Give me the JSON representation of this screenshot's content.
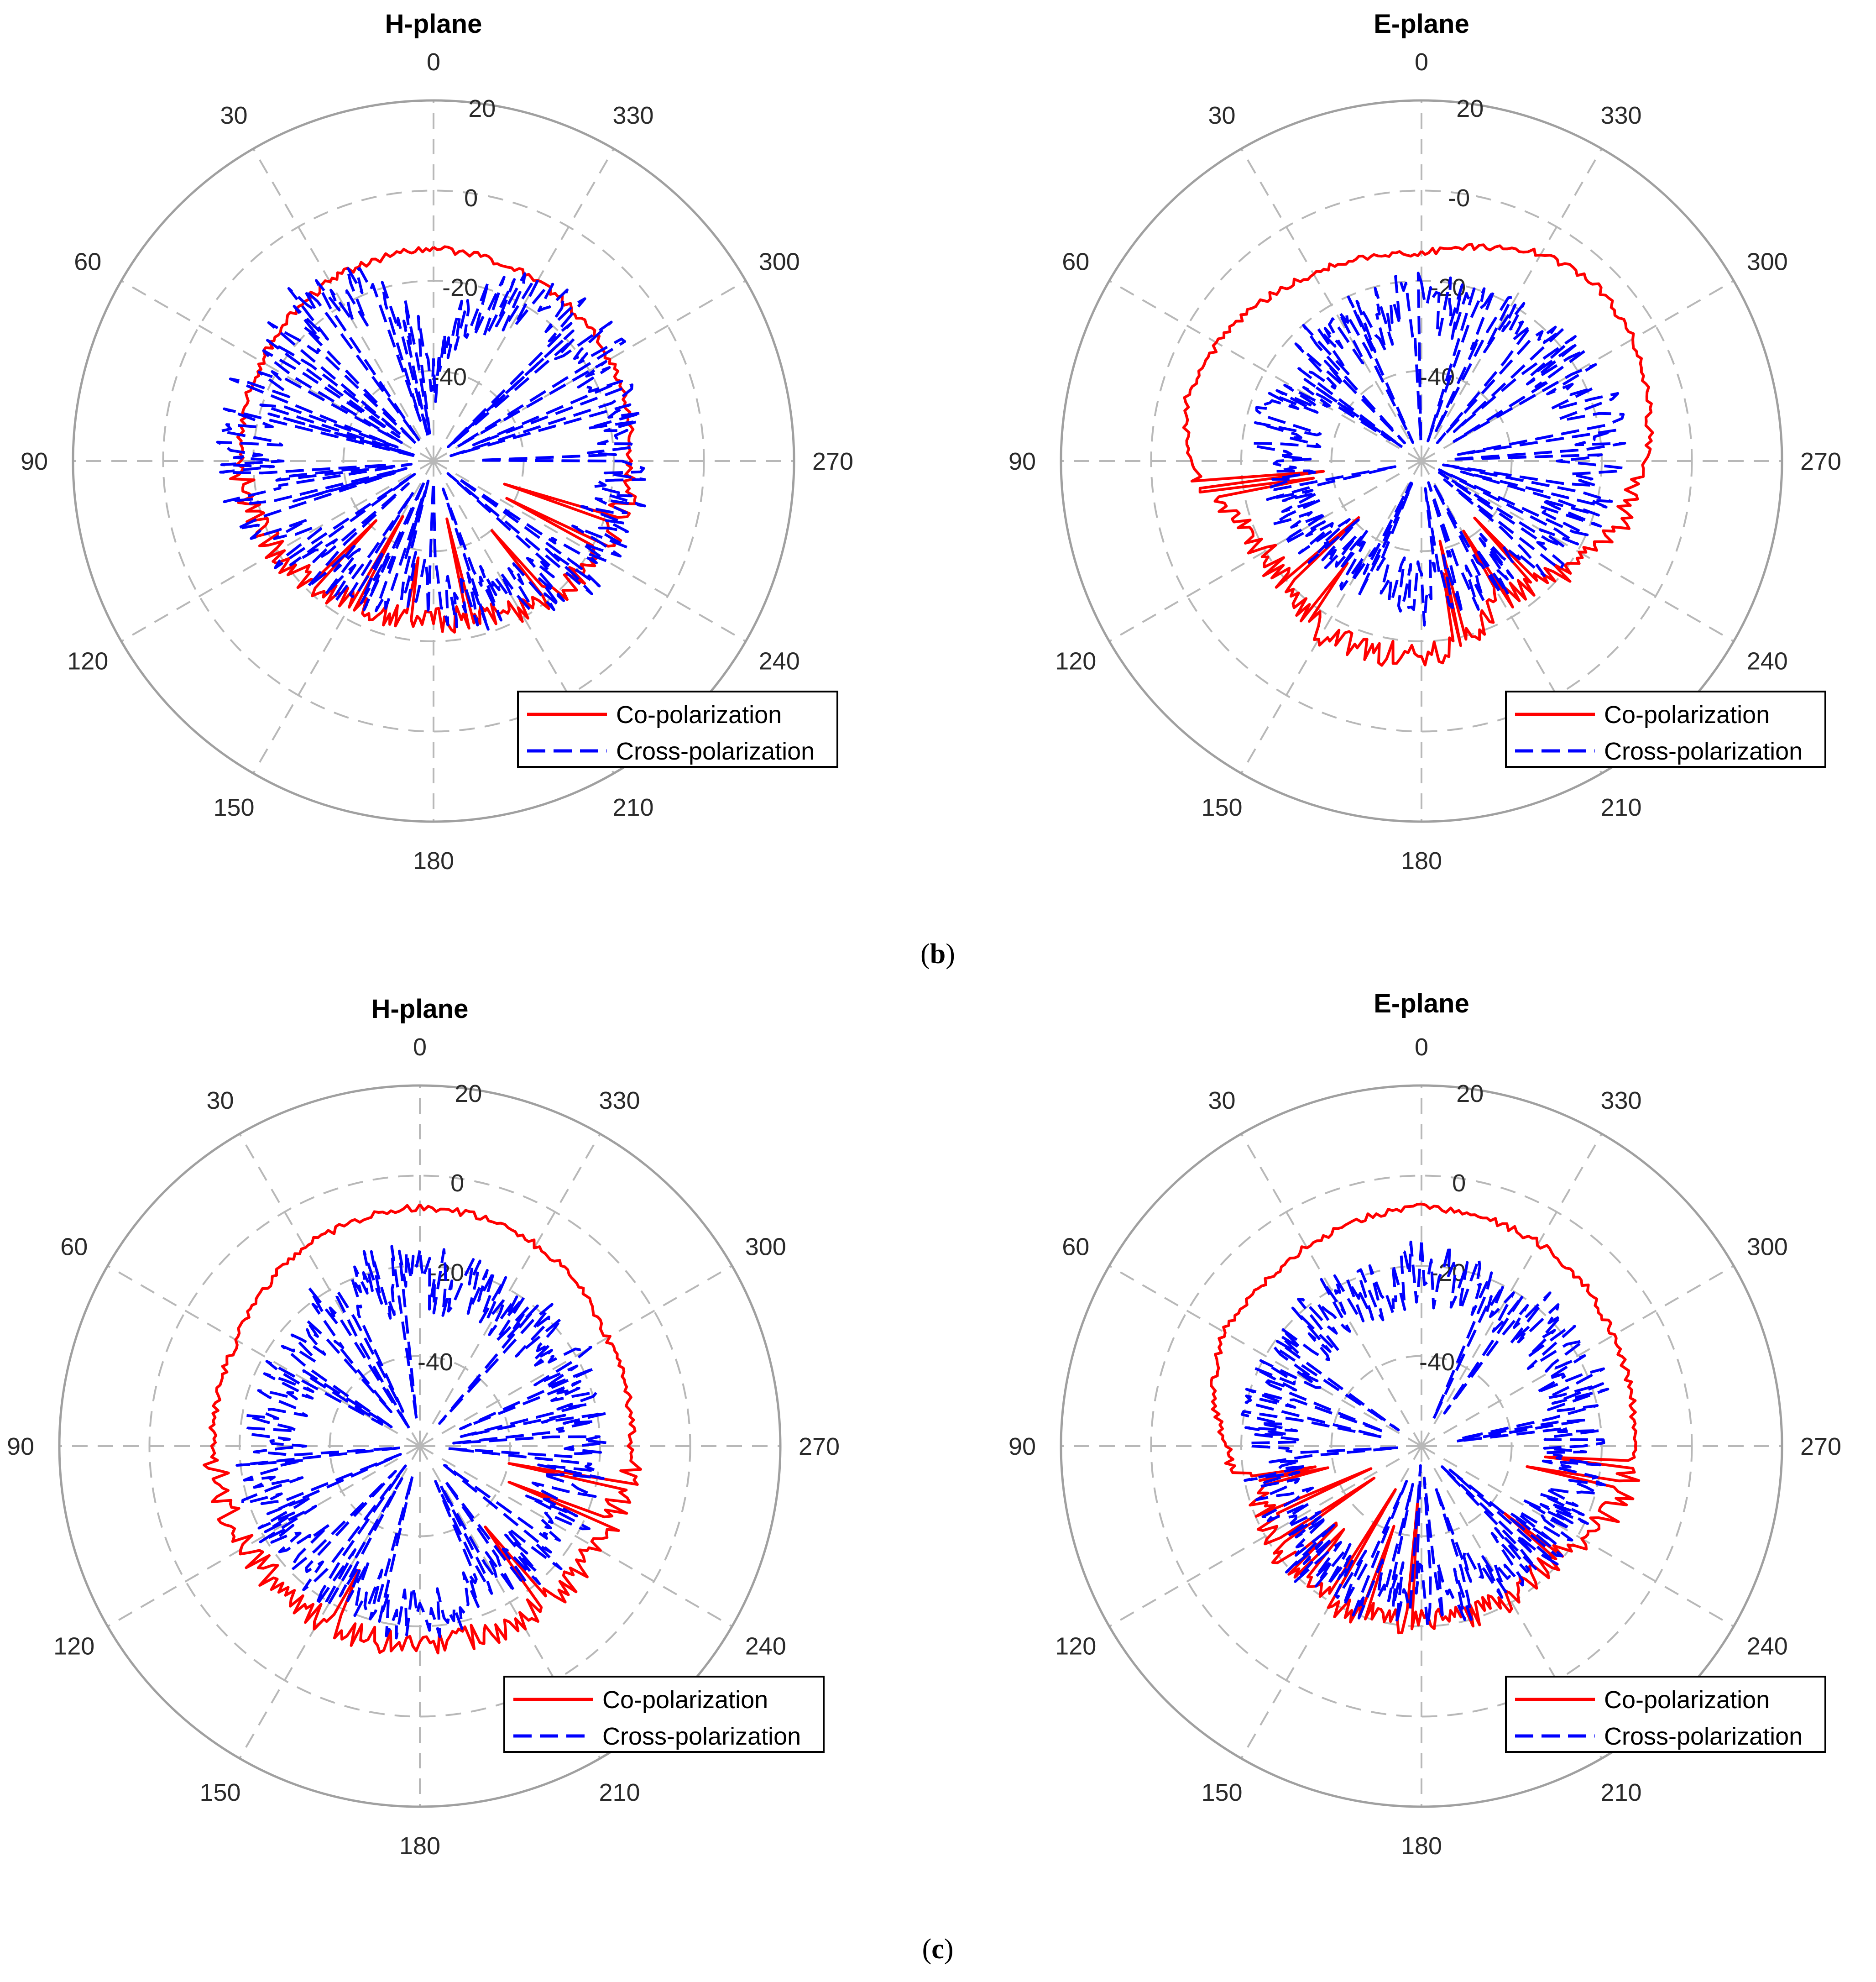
{
  "figure": {
    "captions": [
      {
        "open": "(",
        "letter": "b",
        "close": ")"
      },
      {
        "open": "(",
        "letter": "c",
        "close": ")"
      }
    ]
  },
  "colors": {
    "co": "#ff0000",
    "cross": "#0000ff",
    "grid": "#b8b8b8",
    "outer": "#a0a0a0"
  },
  "chart_data": [
    {
      "type": "polar-line",
      "panel": "b",
      "title": "H-plane",
      "theta_ticks": [
        "0",
        "30",
        "60",
        "90",
        "120",
        "150",
        "180",
        "210",
        "240",
        "270",
        "300",
        "330"
      ],
      "theta_direction": "counterclockwise",
      "theta_zero": "top",
      "r_ticks": [
        "20",
        "0",
        "-20",
        "-40"
      ],
      "r_range": [
        -60,
        20
      ],
      "r_unit": "dB",
      "legend": {
        "entries": [
          "Co-polarization",
          "Cross-polarization"
        ],
        "location": "bottom-right"
      },
      "series": [
        {
          "name": "Co-polarization",
          "style": "solid",
          "color": "#ff0000",
          "theta_deg": [
            0,
            15,
            30,
            45,
            60,
            75,
            90,
            105,
            120,
            135,
            150,
            165,
            180,
            195,
            210,
            225,
            240,
            255,
            270,
            285,
            300,
            315,
            330,
            345
          ],
          "gain_db": [
            -13,
            -13.5,
            -14,
            -15,
            -16,
            -16.5,
            -17,
            -18,
            -20,
            -22,
            -24,
            -25,
            -25,
            -24,
            -22,
            -20,
            -18,
            -17,
            -16.5,
            -15.5,
            -15,
            -14.5,
            -14,
            -13.5
          ]
        },
        {
          "name": "Cross-polarization",
          "style": "dashed",
          "color": "#0000ff",
          "theta_deg": [
            0,
            15,
            30,
            45,
            60,
            75,
            90,
            105,
            120,
            135,
            150,
            165,
            180,
            195,
            210,
            225,
            240,
            255,
            270,
            285,
            300,
            315,
            330,
            345
          ],
          "gain_db": [
            -42,
            -25,
            -17,
            -17,
            -19,
            -19,
            -19,
            -20,
            -23,
            -27,
            -30,
            -33,
            -32,
            -29,
            -26,
            -23,
            -20,
            -19,
            -18.5,
            -18,
            -17.5,
            -17,
            -19,
            -26
          ]
        }
      ]
    },
    {
      "type": "polar-line",
      "panel": "b",
      "title": "E-plane",
      "theta_ticks": [
        "0",
        "30",
        "60",
        "90",
        "120",
        "150",
        "180",
        "210",
        "240",
        "270",
        "300",
        "330"
      ],
      "theta_direction": "counterclockwise",
      "theta_zero": "top",
      "r_ticks": [
        "20",
        "-0",
        "-20",
        "-40"
      ],
      "r_range": [
        -60,
        20
      ],
      "r_unit": "dB",
      "legend": {
        "entries": [
          "Co-polarization",
          "Cross-polarization"
        ],
        "location": "bottom-right"
      },
      "series": [
        {
          "name": "Co-polarization",
          "style": "solid",
          "color": "#ff0000",
          "theta_deg": [
            0,
            15,
            30,
            45,
            60,
            75,
            90,
            105,
            120,
            135,
            150,
            165,
            180,
            195,
            210,
            225,
            240,
            255,
            270,
            285,
            300,
            315,
            330,
            345
          ],
          "gain_db": [
            -14,
            -13,
            -12,
            -10,
            -8,
            -6,
            -9,
            -16,
            -20,
            -19,
            -16,
            -17,
            -16,
            -19,
            -25,
            -22,
            -18,
            -13,
            -10,
            -8,
            -6,
            -5,
            -7,
            -11
          ]
        },
        {
          "name": "Cross-polarization",
          "style": "dashed",
          "color": "#0000ff",
          "theta_deg": [
            0,
            15,
            30,
            45,
            60,
            75,
            90,
            105,
            120,
            135,
            150,
            165,
            180,
            195,
            210,
            225,
            240,
            255,
            270,
            285,
            300,
            315,
            330,
            345
          ],
          "gain_db": [
            -26,
            -27,
            -28,
            -28,
            -29,
            -29,
            -30,
            -30,
            -32,
            -33,
            -34,
            -33,
            -31,
            -32,
            -33,
            -30,
            -27,
            -24,
            -22,
            -21,
            -23,
            -24,
            -25,
            -25
          ]
        }
      ]
    },
    {
      "type": "polar-line",
      "panel": "c",
      "title": "H-plane",
      "theta_ticks": [
        "0",
        "30",
        "60",
        "90",
        "120",
        "150",
        "180",
        "210",
        "240",
        "270",
        "300",
        "330"
      ],
      "theta_direction": "counterclockwise",
      "theta_zero": "top",
      "r_ticks": [
        "20",
        "0",
        "-20",
        "-40"
      ],
      "r_range": [
        -60,
        20
      ],
      "r_unit": "dB",
      "legend": {
        "entries": [
          "Co-polarization",
          "Cross-polarization"
        ],
        "location": "bottom-right"
      },
      "series": [
        {
          "name": "Co-polarization",
          "style": "solid",
          "color": "#ff0000",
          "theta_deg": [
            0,
            15,
            30,
            45,
            60,
            75,
            90,
            105,
            120,
            135,
            150,
            165,
            180,
            195,
            210,
            225,
            240,
            255,
            270,
            285,
            300,
            315,
            330,
            345
          ],
          "gain_db": [
            -7,
            -8,
            -9,
            -11,
            -13,
            -14,
            -14,
            -15,
            -15.5,
            -16,
            -16,
            -16,
            -16,
            -16,
            -16,
            -15.5,
            -15,
            -14,
            -13,
            -12.5,
            -12,
            -10,
            -8.5,
            -7.5
          ]
        },
        {
          "name": "Cross-polarization",
          "style": "dashed",
          "color": "#0000ff",
          "theta_deg": [
            0,
            15,
            30,
            45,
            60,
            75,
            90,
            105,
            120,
            135,
            150,
            165,
            180,
            195,
            210,
            225,
            240,
            255,
            270,
            285,
            300,
            315,
            330,
            345
          ],
          "gain_db": [
            -23,
            -23,
            -24,
            -25,
            -26,
            -27,
            -27,
            -26,
            -26,
            -26,
            -25,
            -25,
            -25,
            -25,
            -25,
            -26,
            -26,
            -26,
            -26,
            -25,
            -24,
            -24,
            -23,
            -23
          ]
        }
      ]
    },
    {
      "type": "polar-line",
      "panel": "c",
      "title": "E-plane",
      "theta_ticks": [
        "0",
        "30",
        "60",
        "90",
        "120",
        "150",
        "180",
        "210",
        "240",
        "270",
        "300",
        "330"
      ],
      "theta_direction": "counterclockwise",
      "theta_zero": "top",
      "r_ticks": [
        "20",
        "0",
        "-20",
        "-40"
      ],
      "r_range": [
        -60,
        20
      ],
      "r_unit": "dB",
      "legend": {
        "entries": [
          "Co-polarization",
          "Cross-polarization"
        ],
        "location": "bottom-right"
      },
      "series": [
        {
          "name": "Co-polarization",
          "style": "solid",
          "color": "#ff0000",
          "theta_deg": [
            0,
            15,
            30,
            45,
            60,
            75,
            90,
            105,
            120,
            135,
            150,
            165,
            180,
            195,
            210,
            225,
            240,
            255,
            270,
            285,
            300,
            315,
            330,
            345
          ],
          "gain_db": [
            -7,
            -8,
            -9,
            -10,
            -9.5,
            -12,
            -17,
            -22,
            -22,
            -20,
            -20,
            -21,
            -21,
            -21,
            -21,
            -22,
            -19,
            -14,
            -13,
            -12,
            -11,
            -9,
            -8,
            -7.5
          ]
        },
        {
          "name": "Cross-polarization",
          "style": "dashed",
          "color": "#0000ff",
          "theta_deg": [
            0,
            15,
            30,
            45,
            60,
            75,
            90,
            105,
            120,
            135,
            150,
            165,
            180,
            195,
            210,
            225,
            240,
            255,
            270,
            285,
            300,
            315,
            330,
            345
          ],
          "gain_db": [
            -22,
            -23,
            -24,
            -25,
            -26,
            -27,
            -28,
            -28,
            -27,
            -27,
            -26,
            -26,
            -26,
            -27,
            -28,
            -28,
            -27,
            -26,
            -25,
            -24,
            -24,
            -23,
            -22,
            -22
          ]
        }
      ]
    }
  ]
}
